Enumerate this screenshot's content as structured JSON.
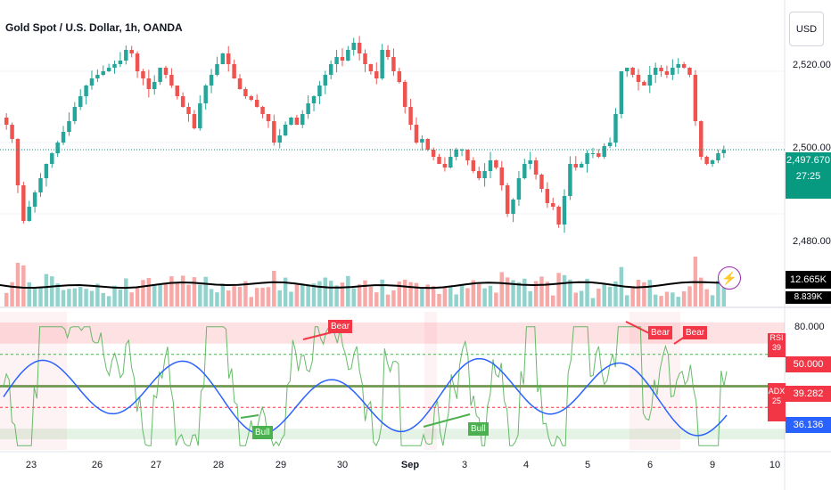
{
  "header": {
    "title": "Gold Spot / U.S. Dollar, 1h, OANDA",
    "currency": "USD"
  },
  "price_axis": {
    "labels": [
      "2,520.000",
      "2,500.000",
      "2,480.000"
    ],
    "current_price": "2,497.670",
    "countdown": "27:25",
    "volume": "12.665K",
    "volume_ma": "8.839K"
  },
  "indicator_axis": {
    "labels": [
      "80.000",
      "50.000",
      "39.282",
      "36.136"
    ],
    "rsi_label": "RSI",
    "rsi_value": "39",
    "adx_label": "ADX",
    "adx_value": "25"
  },
  "signals": {
    "bear": "Bear",
    "bull": "Bull"
  },
  "dates": [
    "23",
    "26",
    "27",
    "28",
    "29",
    "30",
    "Sep",
    "3",
    "4",
    "5",
    "6",
    "9",
    "10"
  ],
  "colors": {
    "up": "#26a69a",
    "down": "#ef5350",
    "rsi": "#4caf50",
    "adx": "#2962ff",
    "price_tag": "#089981",
    "bear": "#f23645",
    "bull": "#4caf50",
    "volume_ma": "#000000"
  },
  "icons": {
    "currency": "usd",
    "alert": "lightning-icon"
  },
  "chart_data": {
    "type": "candlestick",
    "symbol": "XAUUSD",
    "timeframe": "1h",
    "price_ylim": [
      2465,
      2530
    ],
    "closes": [
      2505,
      2501,
      2488,
      2478,
      2482,
      2486,
      2490,
      2494,
      2497,
      2500,
      2503,
      2506,
      2510,
      2513,
      2516,
      2518,
      2519,
      2520,
      2521,
      2522,
      2523,
      2526,
      2525,
      2520,
      2518,
      2515,
      2517,
      2521,
      2519,
      2516,
      2513,
      2510,
      2508,
      2504,
      2511,
      2516,
      2519,
      2522,
      2525,
      2522,
      2518,
      2515,
      2513,
      2512,
      2510,
      2508,
      2506,
      2500,
      2502,
      2505,
      2507,
      2505,
      2508,
      2511,
      2513,
      2516,
      2519,
      2522,
      2524,
      2523,
      2526,
      2528,
      2525,
      2522,
      2520,
      2518,
      2526,
      2524,
      2520,
      2517,
      2510,
      2505,
      2500,
      2501,
      2498,
      2496,
      2494,
      2493,
      2496,
      2498,
      2498,
      2495,
      2492,
      2490,
      2492,
      2495,
      2493,
      2488,
      2480,
      2484,
      2490,
      2494,
      2495,
      2491,
      2487,
      2483,
      2482,
      2477,
      2485,
      2494,
      2493,
      2494,
      2497,
      2497,
      2496,
      2499,
      2500,
      2508,
      2520,
      2521,
      2519,
      2517,
      2516,
      2519,
      2521,
      2520,
      2519,
      2521,
      2522,
      2521,
      2519,
      2506,
      2496,
      2494,
      2495,
      2497,
      2498
    ],
    "rsi_ylim": [
      20,
      85
    ],
    "rsi_overbought": 70,
    "rsi_oversold": 30,
    "rsi_mid": 50,
    "rsi_value": 39,
    "adx_value": 25
  }
}
